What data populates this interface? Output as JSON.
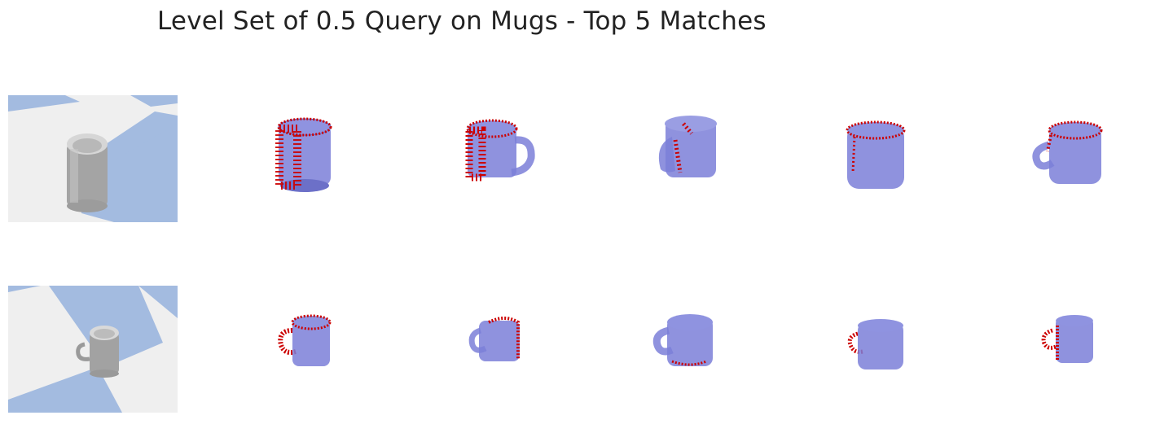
{
  "figure": {
    "title": "Level Set of 0.5 Query on Mugs - Top 5 Matches"
  },
  "colors": {
    "floor_light": "#efefef",
    "floor_blue": "#a3bbe0",
    "mug_query": "#a9a9a9",
    "mesh_fill": "#7b7fd8",
    "mesh_edge": "#5a5ec4",
    "points": "#cc0000"
  },
  "rows": [
    {
      "query_label": "query-scene-1",
      "matches": [
        "match-1",
        "match-2",
        "match-3",
        "match-4",
        "match-5"
      ]
    },
    {
      "query_label": "query-scene-2",
      "matches": [
        "match-1",
        "match-2",
        "match-3",
        "match-4",
        "match-5"
      ]
    }
  ]
}
